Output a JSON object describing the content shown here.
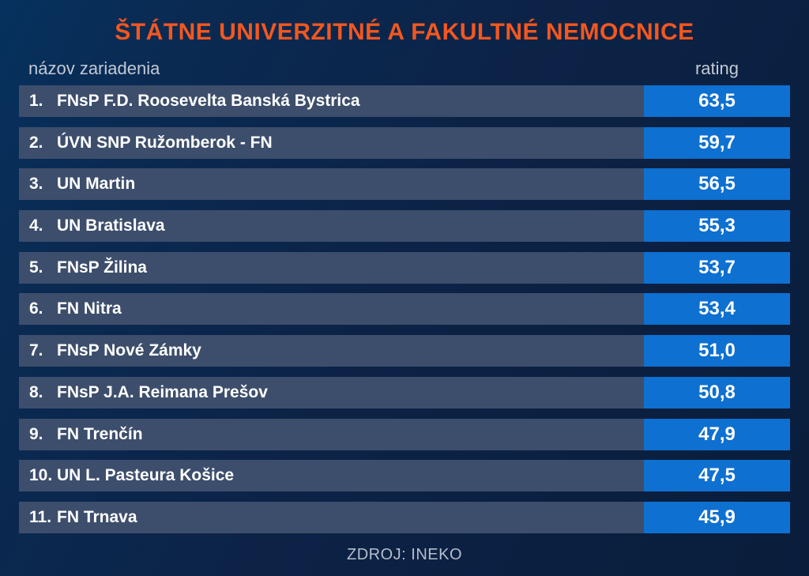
{
  "title": "ŠTÁTNE UNIVERZITNÉ A FAKULTNÉ NEMOCNICE",
  "columns": {
    "name": "názov zariadenia",
    "rating": "rating"
  },
  "source": "ZDROJ: INEKO",
  "colors": {
    "background_top": "#06315e",
    "background_bottom": "#0a1d3b",
    "title_orange": "#f3571f",
    "row_bar": "#3d4e6c",
    "rating_badge_blue": "#0e70d0",
    "header_gray": "#c4cad4",
    "row_text": "#ffffff",
    "source_gray": "#b7beca"
  },
  "table": {
    "rows": [
      {
        "rank": "1.",
        "name": "FNsP F.D. Roosevelta Banská Bystrica",
        "rating": "63,5"
      },
      {
        "rank": "2.",
        "name": "ÚVN SNP Ružomberok - FN",
        "rating": "59,7"
      },
      {
        "rank": "3.",
        "name": "UN Martin",
        "rating": "56,5"
      },
      {
        "rank": "4.",
        "name": "UN Bratislava",
        "rating": "55,3"
      },
      {
        "rank": "5.",
        "name": "FNsP Žilina",
        "rating": "53,7"
      },
      {
        "rank": "6.",
        "name": "FN Nitra",
        "rating": "53,4"
      },
      {
        "rank": "7.",
        "name": "FNsP Nové Zámky",
        "rating": "51,0"
      },
      {
        "rank": "8.",
        "name": "FNsP J.A. Reimana Prešov",
        "rating": "50,8"
      },
      {
        "rank": "9.",
        "name": "FN Trenčín",
        "rating": "47,9"
      },
      {
        "rank": "10.",
        "name": "UN L. Pasteura Košice",
        "rating": "47,5"
      },
      {
        "rank": "11.",
        "name": "FN Trnava",
        "rating": "45,9"
      }
    ]
  },
  "chart_data": {
    "type": "table",
    "title": "ŠTÁTNE UNIVERZITNÉ A FAKULTNÉ NEMOCNICE",
    "columns": [
      "názov zariadenia",
      "rating"
    ],
    "rows": [
      [
        "FNsP F.D. Roosevelta Banská Bystrica",
        63.5
      ],
      [
        "ÚVN SNP Ružomberok - FN",
        59.7
      ],
      [
        "UN Martin",
        56.5
      ],
      [
        "UN Bratislava",
        55.3
      ],
      [
        "FNsP Žilina",
        53.7
      ],
      [
        "FN Nitra",
        53.4
      ],
      [
        "FNsP Nové Zámky",
        51.0
      ],
      [
        "FNsP J.A. Reimana Prešov",
        50.8
      ],
      [
        "FN Trenčín",
        47.9
      ],
      [
        "UN L. Pasteura Košice",
        47.5
      ],
      [
        "FN Trnava",
        45.9
      ]
    ],
    "value_format": "decimal-comma",
    "source": "ZDROJ: INEKO",
    "layout": "ranked horizontal rows, rating badge right-aligned column"
  }
}
